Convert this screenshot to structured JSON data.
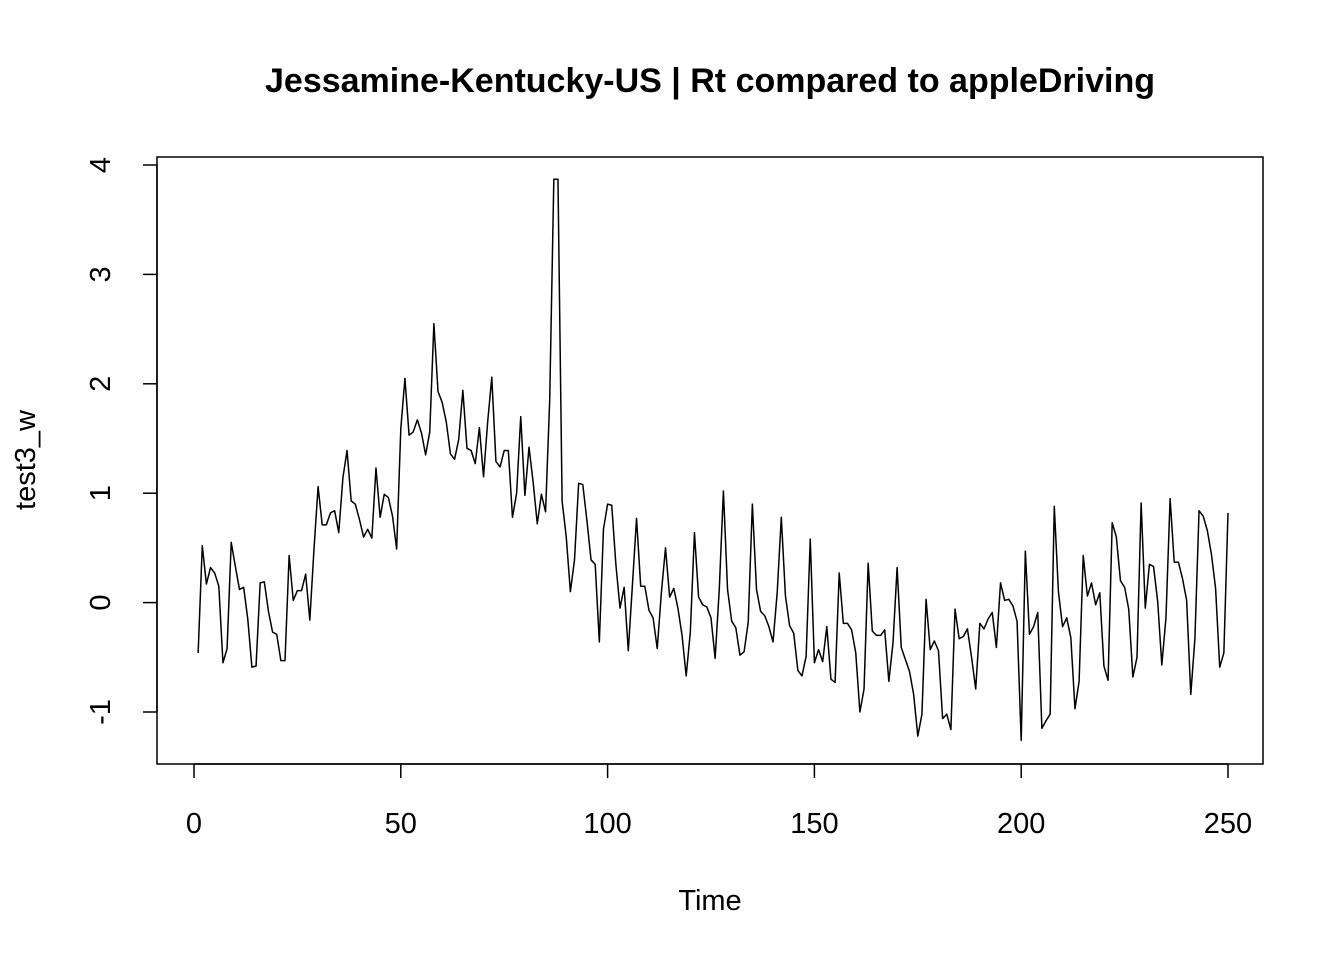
{
  "chart_data": {
    "type": "line",
    "title": "Jessamine-Kentucky-US | Rt compared to appleDriving",
    "xlabel": "Time",
    "ylabel": "test3_w",
    "xlim": [
      1,
      248
    ],
    "ylim": [
      -1.45,
      4.08
    ],
    "x_ticks": [
      0,
      50,
      100,
      150,
      200,
      250
    ],
    "y_ticks": [
      -1,
      0,
      1,
      2,
      3,
      4
    ],
    "x_tick_labels": [
      "0",
      "50",
      "100",
      "150",
      "200",
      "250"
    ],
    "y_tick_labels": [
      "-1",
      "0",
      "1",
      "2",
      "3",
      "4"
    ],
    "grid": false,
    "line_color": "#000000",
    "series": [
      {
        "x_start": 1,
        "values": [
          -0.46,
          0.52,
          0.17,
          0.32,
          0.27,
          0.15,
          -0.55,
          -0.42,
          0.55,
          0.33,
          0.12,
          0.14,
          -0.15,
          -0.59,
          -0.58,
          0.18,
          0.19,
          -0.08,
          -0.27,
          -0.29,
          -0.53,
          -0.53,
          0.43,
          0.02,
          0.11,
          0.11,
          0.26,
          -0.16,
          0.48,
          1.06,
          0.71,
          0.71,
          0.82,
          0.84,
          0.64,
          1.14,
          1.39,
          0.93,
          0.9,
          0.76,
          0.6,
          0.67,
          0.59,
          1.23,
          0.78,
          0.99,
          0.96,
          0.79,
          0.49,
          1.59,
          2.05,
          1.53,
          1.56,
          1.67,
          1.55,
          1.35,
          1.56,
          2.55,
          1.93,
          1.83,
          1.65,
          1.36,
          1.31,
          1.49,
          1.94,
          1.41,
          1.39,
          1.27,
          1.6,
          1.15,
          1.65,
          2.06,
          1.29,
          1.24,
          1.39,
          1.39,
          0.78,
          1.0,
          1.7,
          0.98,
          1.42,
          1.1,
          0.72,
          0.99,
          0.83,
          1.85,
          3.87,
          3.87,
          0.93,
          0.6,
          0.1,
          0.39,
          1.09,
          1.08,
          0.75,
          0.39,
          0.35,
          -0.36,
          0.67,
          0.9,
          0.89,
          0.35,
          -0.05,
          0.14,
          -0.44,
          0.16,
          0.77,
          0.15,
          0.15,
          -0.07,
          -0.14,
          -0.42,
          0.09,
          0.5,
          0.05,
          0.13,
          -0.05,
          -0.3,
          -0.67,
          -0.27,
          0.64,
          0.05,
          -0.02,
          -0.04,
          -0.14,
          -0.51,
          0.12,
          1.02,
          0.12,
          -0.17,
          -0.23,
          -0.48,
          -0.45,
          -0.18,
          0.9,
          0.12,
          -0.08,
          -0.12,
          -0.22,
          -0.36,
          0.09,
          0.78,
          0.06,
          -0.21,
          -0.28,
          -0.62,
          -0.67,
          -0.49,
          0.58,
          -0.55,
          -0.43,
          -0.54,
          -0.22,
          -0.7,
          -0.73,
          0.27,
          -0.19,
          -0.19,
          -0.25,
          -0.46,
          -1.0,
          -0.79,
          0.36,
          -0.26,
          -0.3,
          -0.3,
          -0.25,
          -0.72,
          -0.37,
          0.32,
          -0.41,
          -0.52,
          -0.63,
          -0.84,
          -1.22,
          -1.02,
          0.03,
          -0.43,
          -0.35,
          -0.44,
          -1.06,
          -1.02,
          -1.16,
          -0.06,
          -0.33,
          -0.31,
          -0.24,
          -0.5,
          -0.79,
          -0.19,
          -0.24,
          -0.15,
          -0.09,
          -0.41,
          0.18,
          0.02,
          0.03,
          -0.03,
          -0.17,
          -1.26,
          0.47,
          -0.29,
          -0.22,
          -0.09,
          -1.15,
          -1.08,
          -1.02,
          0.88,
          0.1,
          -0.22,
          -0.14,
          -0.32,
          -0.97,
          -0.72,
          0.43,
          0.06,
          0.18,
          -0.02,
          0.09,
          -0.58,
          -0.71,
          0.73,
          0.6,
          0.2,
          0.14,
          -0.06,
          -0.68,
          -0.5,
          0.91,
          -0.05,
          0.35,
          0.33,
          0.01,
          -0.57,
          -0.14,
          0.95,
          0.37,
          0.37,
          0.22,
          0.02,
          -0.84,
          -0.33,
          0.84,
          0.79,
          0.66,
          0.44,
          0.13,
          -0.59,
          -0.46,
          0.82
        ]
      }
    ]
  }
}
